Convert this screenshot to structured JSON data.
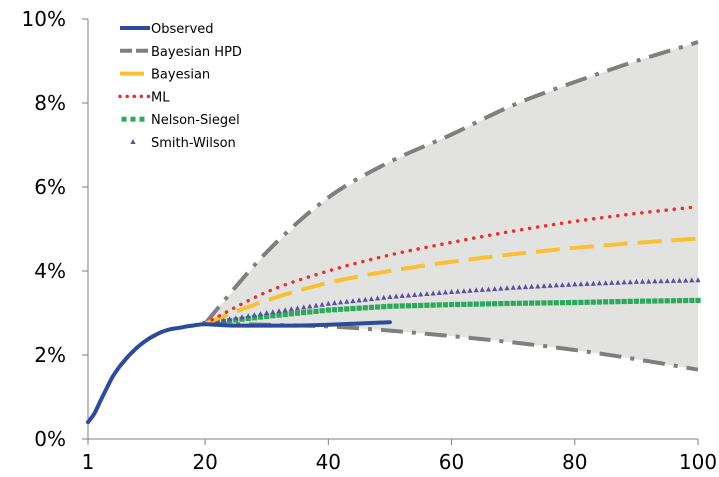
{
  "chart_data": {
    "type": "line",
    "title": "",
    "xlabel": "",
    "ylabel": "",
    "xlim": [
      1,
      100
    ],
    "ylim": [
      0,
      10
    ],
    "x_ticks": [
      1,
      20,
      40,
      60,
      80,
      100
    ],
    "y_ticks": [
      0,
      2,
      4,
      6,
      8,
      10
    ],
    "y_tick_labels": [
      "0%",
      "2%",
      "4%",
      "6%",
      "8%",
      "10%"
    ],
    "y_unit": "%",
    "grid": false,
    "legend_position": "top-left",
    "band": {
      "name": "Bayesian HPD",
      "color": "#e2e3e1",
      "x": [
        20,
        30,
        40,
        50,
        60,
        70,
        80,
        90,
        100
      ],
      "upper": [
        2.75,
        4.45,
        5.75,
        6.6,
        7.25,
        7.95,
        8.5,
        9.0,
        9.45
      ],
      "lower": [
        2.75,
        2.72,
        2.68,
        2.58,
        2.45,
        2.3,
        2.12,
        1.9,
        1.65
      ]
    },
    "series": [
      {
        "name": "Observed",
        "color": "#2e4a9b",
        "style": "solid",
        "x": [
          1,
          2,
          3,
          4,
          5,
          6,
          7,
          8,
          9,
          10,
          11,
          12,
          13,
          14,
          15,
          16,
          17,
          18,
          19,
          20,
          25,
          30,
          35,
          40,
          45,
          50
        ],
        "values": [
          0.4,
          0.6,
          0.9,
          1.2,
          1.48,
          1.7,
          1.88,
          2.04,
          2.18,
          2.3,
          2.4,
          2.48,
          2.55,
          2.6,
          2.63,
          2.65,
          2.68,
          2.7,
          2.72,
          2.73,
          2.7,
          2.7,
          2.7,
          2.72,
          2.75,
          2.78
        ]
      },
      {
        "name": "Bayesian HPD",
        "color": "#7f7f7f",
        "style": "dash-dot",
        "x": [
          20,
          30,
          40,
          50,
          60,
          70,
          80,
          90,
          100
        ],
        "values": [
          2.75,
          4.45,
          5.75,
          6.6,
          7.25,
          7.95,
          8.5,
          9.0,
          9.45
        ]
      },
      {
        "name": "",
        "color": "#7f7f7f",
        "style": "dash-dot",
        "x": [
          20,
          30,
          40,
          50,
          60,
          70,
          80,
          90,
          100
        ],
        "values": [
          2.75,
          2.72,
          2.68,
          2.58,
          2.45,
          2.3,
          2.12,
          1.9,
          1.65
        ]
      },
      {
        "name": "Bayesian",
        "color": "#f8c032",
        "style": "dashed",
        "x": [
          20,
          30,
          40,
          50,
          60,
          70,
          80,
          90,
          100
        ],
        "values": [
          2.75,
          3.3,
          3.72,
          4.0,
          4.22,
          4.4,
          4.55,
          4.67,
          4.77
        ]
      },
      {
        "name": "ML",
        "color": "#e8312e",
        "style": "dotted",
        "x": [
          20,
          30,
          40,
          50,
          60,
          70,
          80,
          90,
          100
        ],
        "values": [
          2.75,
          3.5,
          4.0,
          4.38,
          4.68,
          4.95,
          5.18,
          5.37,
          5.53
        ]
      },
      {
        "name": "Nelson-Siegel",
        "color": "#2aaa5a",
        "style": "square-markers",
        "x": [
          20,
          30,
          40,
          50,
          60,
          70,
          80,
          90,
          100
        ],
        "values": [
          2.75,
          2.92,
          3.07,
          3.16,
          3.2,
          3.23,
          3.25,
          3.28,
          3.3
        ]
      },
      {
        "name": "Smith-Wilson",
        "color": "#5b4fa0",
        "style": "triangle-markers",
        "x": [
          20,
          30,
          40,
          50,
          60,
          70,
          80,
          90,
          100
        ],
        "values": [
          2.75,
          3.0,
          3.22,
          3.38,
          3.5,
          3.6,
          3.68,
          3.74,
          3.78
        ]
      }
    ]
  }
}
